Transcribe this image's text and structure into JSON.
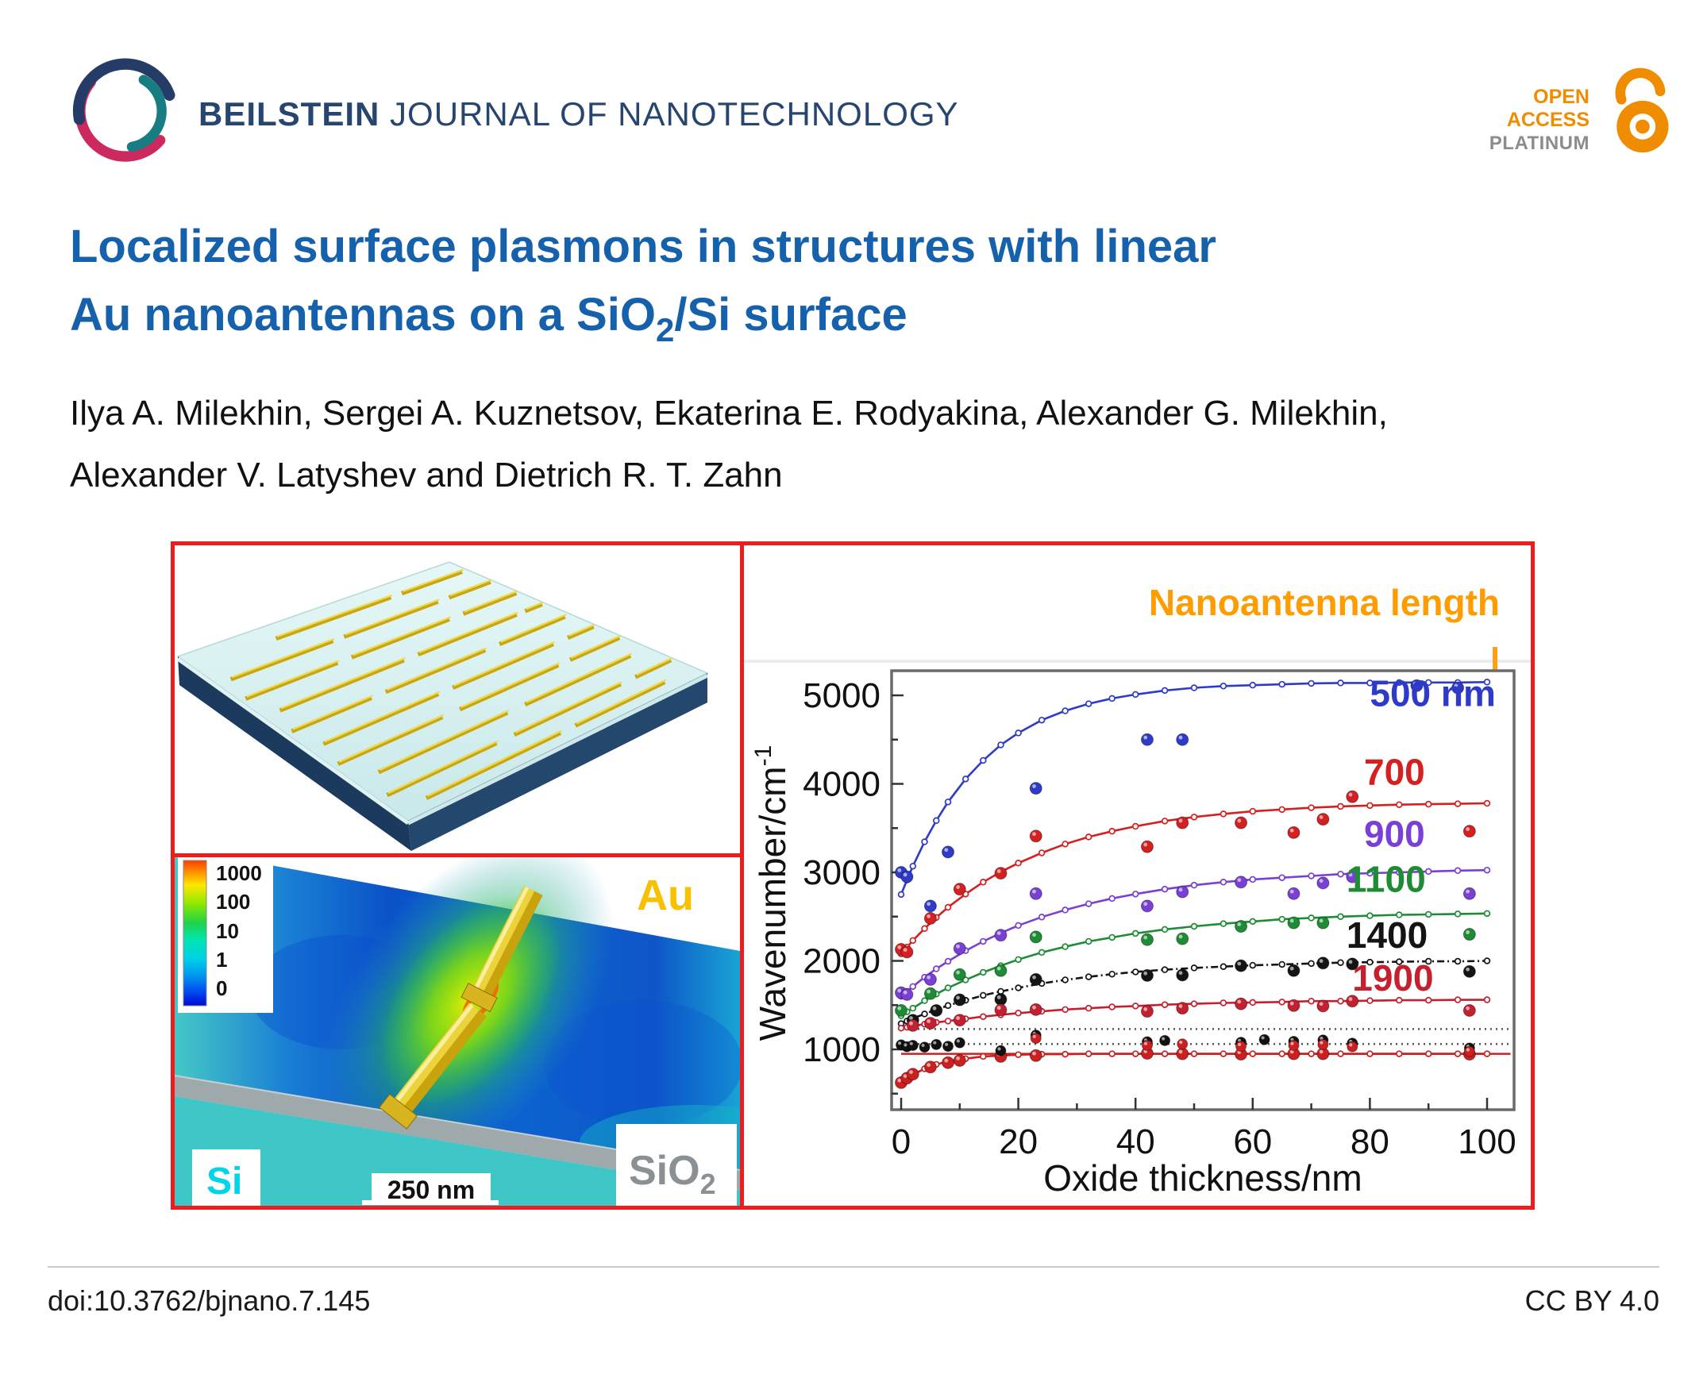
{
  "header": {
    "journal_bold": "BEILSTEIN",
    "journal_rest": " JOURNAL OF NANOTECHNOLOGY",
    "open_access": {
      "line1": "OPEN",
      "line2": "ACCESS",
      "line3": "PLATINUM"
    }
  },
  "title": {
    "line1": "Localized surface plasmons in structures with linear",
    "line2_pre": "Au nanoantennas on a SiO",
    "line2_sub": "2",
    "line2_post": "/Si surface"
  },
  "authors": {
    "line1": "Ilya A. Milekhin, Sergei A. Kuznetsov, Ekaterina E. Rodyakina, Alexander G. Milekhin,",
    "line2": "Alexander V. Latyshev and Dietrich R. T. Zahn"
  },
  "figure": {
    "panel_b": {
      "colorbar_labels": [
        "1000",
        "100",
        "10",
        "1",
        "0"
      ],
      "label_au": "Au",
      "label_si": "Si",
      "label_sio2_base": "SiO",
      "label_sio2_sub": "2",
      "scalebar_label": "250 nm"
    }
  },
  "chart_data": {
    "type": "scatter",
    "annotation": "Nanoantenna length",
    "xlabel": "Oxide thickness/nm",
    "ylabel_base": "Wavenumber/cm",
    "ylabel_exp": "-1",
    "xlim": [
      -2,
      104.5
    ],
    "ylim": [
      320,
      5280
    ],
    "xticks": [
      0,
      20,
      40,
      60,
      80,
      100
    ],
    "xticks_minor": [
      10,
      30,
      50,
      70,
      90
    ],
    "yticks": [
      1000,
      2000,
      3000,
      4000,
      5000
    ],
    "yticks_minor": [
      500,
      1500,
      2500,
      3500,
      4500
    ],
    "grid": false,
    "curve_x": [
      0,
      1,
      2,
      4,
      6,
      8,
      11,
      14,
      17,
      20,
      24,
      28,
      32,
      36,
      40,
      45,
      50,
      55,
      60,
      65,
      70,
      75,
      80,
      85,
      90,
      95,
      100
    ],
    "series": [
      {
        "name": "500 nm",
        "label": "500 nm",
        "color": "#2e3bc8",
        "line": "solid",
        "label_pos": [
          80,
          4880
        ],
        "curve_y": [
          2750,
          2915,
          3070,
          3345,
          3585,
          3795,
          4055,
          4265,
          4440,
          4575,
          4720,
          4825,
          4905,
          4965,
          5010,
          5055,
          5085,
          5105,
          5115,
          5125,
          5135,
          5140,
          5140,
          5145,
          5145,
          5145,
          5150
        ],
        "scatter": [
          [
            0,
            3000
          ],
          [
            1,
            2950
          ],
          [
            5,
            2620
          ],
          [
            8,
            3230
          ],
          [
            23,
            3950
          ],
          [
            42,
            4500
          ],
          [
            48,
            4500
          ],
          [
            88,
            5110
          ],
          [
            95,
            5085
          ]
        ]
      },
      {
        "name": "700",
        "label": "700",
        "color": "#d42020",
        "line": "solid",
        "label_pos": [
          79,
          3990
        ],
        "curve_y": [
          2080,
          2155,
          2230,
          2365,
          2490,
          2605,
          2755,
          2890,
          3005,
          3105,
          3220,
          3320,
          3400,
          3465,
          3520,
          3580,
          3625,
          3660,
          3690,
          3710,
          3730,
          3745,
          3755,
          3765,
          3770,
          3775,
          3780
        ],
        "scatter": [
          [
            0,
            2130
          ],
          [
            1,
            2100
          ],
          [
            5,
            2480
          ],
          [
            10,
            2810
          ],
          [
            17,
            2990
          ],
          [
            23,
            3410
          ],
          [
            42,
            3290
          ],
          [
            48,
            3560
          ],
          [
            58,
            3560
          ],
          [
            67,
            3450
          ],
          [
            72,
            3600
          ],
          [
            77,
            3855
          ],
          [
            97,
            3465
          ]
        ]
      },
      {
        "name": "900",
        "label": "900",
        "color": "#7a3fd4",
        "line": "solid",
        "label_pos": [
          79,
          3290
        ],
        "curve_y": [
          1600,
          1655,
          1710,
          1815,
          1910,
          1995,
          2115,
          2220,
          2315,
          2400,
          2495,
          2575,
          2645,
          2705,
          2755,
          2810,
          2855,
          2890,
          2920,
          2940,
          2960,
          2980,
          2990,
          3000,
          3010,
          3020,
          3025
        ],
        "scatter": [
          [
            0,
            1640
          ],
          [
            1,
            1620
          ],
          [
            5,
            1790
          ],
          [
            10,
            2140
          ],
          [
            17,
            2290
          ],
          [
            23,
            2760
          ],
          [
            42,
            2620
          ],
          [
            48,
            2780
          ],
          [
            58,
            2890
          ],
          [
            67,
            2760
          ],
          [
            72,
            2880
          ],
          [
            77,
            2950
          ],
          [
            97,
            2760
          ]
        ]
      },
      {
        "name": "1100",
        "label": "1100",
        "color": "#1d8c35",
        "line": "solid",
        "label_pos": [
          76,
          2780
        ],
        "curve_y": [
          1380,
          1425,
          1465,
          1550,
          1625,
          1695,
          1785,
          1870,
          1945,
          2015,
          2095,
          2160,
          2220,
          2265,
          2310,
          2355,
          2390,
          2420,
          2445,
          2470,
          2485,
          2500,
          2510,
          2520,
          2525,
          2530,
          2535
        ],
        "scatter": [
          [
            0,
            1440
          ],
          [
            5,
            1630
          ],
          [
            10,
            1845
          ],
          [
            17,
            1890
          ],
          [
            23,
            2270
          ],
          [
            42,
            2240
          ],
          [
            48,
            2250
          ],
          [
            58,
            2390
          ],
          [
            67,
            2430
          ],
          [
            72,
            2430
          ],
          [
            97,
            2300
          ]
        ]
      },
      {
        "name": "1400",
        "label": "1400",
        "color": "#141414",
        "line": "dashdot",
        "label_pos": [
          76,
          2150
        ],
        "curve_y": [
          1290,
          1320,
          1350,
          1400,
          1450,
          1495,
          1555,
          1610,
          1655,
          1695,
          1745,
          1785,
          1820,
          1850,
          1875,
          1900,
          1920,
          1935,
          1950,
          1960,
          1970,
          1980,
          1985,
          1990,
          1995,
          1995,
          2000
        ],
        "scatter": [
          [
            2,
            1330
          ],
          [
            6,
            1440
          ],
          [
            10,
            1560
          ],
          [
            17,
            1565
          ],
          [
            23,
            1790
          ],
          [
            42,
            1835
          ],
          [
            48,
            1840
          ],
          [
            58,
            1945
          ],
          [
            67,
            1890
          ],
          [
            72,
            1975
          ],
          [
            77,
            1965
          ],
          [
            97,
            1880
          ]
        ]
      },
      {
        "name": "1900",
        "label": "1900",
        "color": "#c42030",
        "line": "solid",
        "label_pos": [
          77,
          1665
        ],
        "curve_y": [
          1240,
          1250,
          1265,
          1285,
          1305,
          1320,
          1345,
          1370,
          1390,
          1410,
          1430,
          1450,
          1465,
          1480,
          1490,
          1505,
          1515,
          1525,
          1530,
          1535,
          1545,
          1545,
          1550,
          1555,
          1555,
          1560,
          1560
        ],
        "scatter": [
          [
            2,
            1270
          ],
          [
            5,
            1295
          ],
          [
            10,
            1330
          ],
          [
            17,
            1445
          ],
          [
            23,
            1450
          ],
          [
            42,
            1430
          ],
          [
            48,
            1465
          ],
          [
            58,
            1515
          ],
          [
            67,
            1495
          ],
          [
            72,
            1490
          ],
          [
            77,
            1545
          ],
          [
            97,
            1440
          ]
        ]
      },
      {
        "name": "unlabeled-low-red-curve",
        "label": null,
        "color": "#cc2020",
        "line": "solid",
        "label_pos": null,
        "curve_y": [
          620,
          670,
          715,
          780,
          830,
          865,
          895,
          920,
          930,
          940,
          945,
          945,
          950,
          950,
          950,
          950,
          950,
          950,
          950,
          950,
          950,
          950,
          950,
          950,
          950,
          950,
          950
        ],
        "scatter": [
          [
            0,
            625
          ],
          [
            1,
            675
          ],
          [
            2,
            720
          ],
          [
            5,
            800
          ],
          [
            8,
            850
          ],
          [
            10,
            875
          ],
          [
            17,
            920
          ],
          [
            23,
            930
          ],
          [
            42,
            955
          ],
          [
            48,
            950
          ],
          [
            58,
            945
          ],
          [
            67,
            950
          ],
          [
            72,
            950
          ],
          [
            97,
            945
          ]
        ]
      }
    ],
    "reference_lines": [
      {
        "y": 1230,
        "style": "dotted",
        "color": "#555555"
      },
      {
        "y": 1060,
        "style": "dotted",
        "color": "#555555"
      },
      {
        "y": 950,
        "style": "solid",
        "color": "#cc2020"
      }
    ],
    "extra_points": [
      {
        "name": "unlabeled-black-points",
        "color": "#111111",
        "points": [
          [
            0,
            1050
          ],
          [
            1,
            1030
          ],
          [
            2,
            1045
          ],
          [
            4,
            1025
          ],
          [
            6,
            1055
          ],
          [
            8,
            1035
          ],
          [
            10,
            1075
          ],
          [
            17,
            985
          ],
          [
            23,
            1160
          ],
          [
            42,
            1085
          ],
          [
            45,
            1100
          ],
          [
            58,
            1080
          ],
          [
            62,
            1110
          ],
          [
            67,
            1090
          ],
          [
            72,
            1105
          ],
          [
            77,
            1070
          ],
          [
            97,
            1015
          ]
        ]
      },
      {
        "name": "unlabeled-red-points",
        "color": "#cc2020",
        "points": [
          [
            23,
            1125
          ],
          [
            42,
            1045
          ],
          [
            48,
            1060
          ],
          [
            58,
            1035
          ],
          [
            67,
            1045
          ],
          [
            72,
            1055
          ],
          [
            77,
            1030
          ],
          [
            97,
            975
          ]
        ]
      }
    ]
  },
  "footer": {
    "doi": "doi:10.3762/bjnano.7.145",
    "license": "CC BY 4.0"
  },
  "colors": {
    "border_red": "#ee1c1c",
    "title_blue": "#1661ac",
    "journal_navy": "#26456f",
    "logo_navy": "#253d66",
    "logo_teal": "#177d82",
    "logo_crimson": "#cc2a5e",
    "oa_orange": "#f08c00",
    "platinum_gray": "#8c8c8c",
    "annotation_orange": "#ff9c00",
    "au_gold": "#f7c100",
    "si_cyan": "#00d4e8",
    "sio2_gray": "#8b9094",
    "substrate_teal": "#3fc6c6"
  }
}
